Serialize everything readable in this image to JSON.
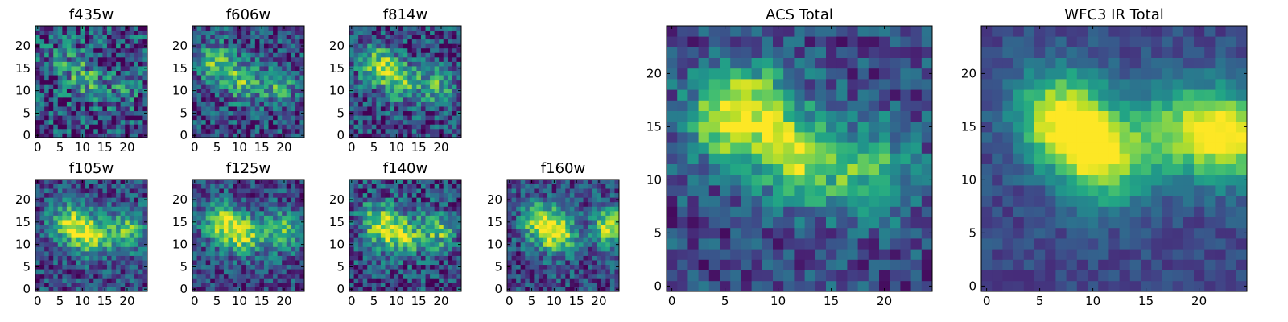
{
  "chart_data": [
    {
      "type": "heatmap",
      "title": "f435w",
      "xlim": [
        0,
        24
      ],
      "ylim": [
        0,
        24
      ],
      "xticks": [
        0,
        5,
        10,
        15,
        20
      ],
      "yticks": [
        0,
        5,
        10,
        15,
        20
      ],
      "grid": false,
      "colormap": "viridis",
      "blobs": [
        {
          "x": 7,
          "y": 16,
          "level": 0.25
        },
        {
          "x": 12,
          "y": 12,
          "level": 0.3
        },
        {
          "x": 19,
          "y": 10,
          "level": 0.15
        }
      ],
      "noise": 0.45,
      "seed": 11
    },
    {
      "type": "heatmap",
      "title": "f606w",
      "xlim": [
        0,
        24
      ],
      "ylim": [
        0,
        24
      ],
      "xticks": [
        0,
        5,
        10,
        15,
        20
      ],
      "yticks": [
        0,
        5,
        10,
        15,
        20
      ],
      "grid": false,
      "colormap": "viridis",
      "blobs": [
        {
          "x": 5,
          "y": 16,
          "level": 0.5
        },
        {
          "x": 11,
          "y": 12,
          "level": 0.45
        },
        {
          "x": 19,
          "y": 11,
          "level": 0.35
        }
      ],
      "noise": 0.35,
      "seed": 23
    },
    {
      "type": "heatmap",
      "title": "f814w",
      "xlim": [
        0,
        24
      ],
      "ylim": [
        0,
        24
      ],
      "xticks": [
        0,
        5,
        10,
        15,
        20
      ],
      "yticks": [
        0,
        5,
        10,
        15,
        20
      ],
      "grid": false,
      "colormap": "viridis",
      "blobs": [
        {
          "x": 6,
          "y": 16,
          "level": 0.55
        },
        {
          "x": 11,
          "y": 12,
          "level": 0.45
        },
        {
          "x": 19,
          "y": 11,
          "level": 0.4
        }
      ],
      "noise": 0.35,
      "seed": 37
    },
    {
      "type": "heatmap",
      "title": "f105w",
      "xlim": [
        0,
        24
      ],
      "ylim": [
        0,
        24
      ],
      "xticks": [
        0,
        5,
        10,
        15,
        20
      ],
      "yticks": [
        0,
        5,
        10,
        15,
        20
      ],
      "grid": false,
      "colormap": "viridis",
      "blobs": [
        {
          "x": 7,
          "y": 15,
          "level": 0.6
        },
        {
          "x": 12,
          "y": 12,
          "level": 0.65
        },
        {
          "x": 20,
          "y": 13,
          "level": 0.5
        }
      ],
      "noise": 0.3,
      "seed": 41
    },
    {
      "type": "heatmap",
      "title": "f125w",
      "xlim": [
        0,
        24
      ],
      "ylim": [
        0,
        24
      ],
      "xticks": [
        0,
        5,
        10,
        15,
        20
      ],
      "yticks": [
        0,
        5,
        10,
        15,
        20
      ],
      "grid": false,
      "colormap": "viridis",
      "blobs": [
        {
          "x": 6,
          "y": 15,
          "level": 0.6
        },
        {
          "x": 11,
          "y": 12,
          "level": 0.6
        },
        {
          "x": 20,
          "y": 13,
          "level": 0.55
        }
      ],
      "noise": 0.3,
      "seed": 53
    },
    {
      "type": "heatmap",
      "title": "f140w",
      "xlim": [
        0,
        24
      ],
      "ylim": [
        0,
        24
      ],
      "xticks": [
        0,
        5,
        10,
        15,
        20
      ],
      "yticks": [
        0,
        5,
        10,
        15,
        20
      ],
      "grid": false,
      "colormap": "viridis",
      "blobs": [
        {
          "x": 6,
          "y": 15,
          "level": 0.6
        },
        {
          "x": 11,
          "y": 12,
          "level": 0.6
        },
        {
          "x": 19,
          "y": 13,
          "level": 0.5
        }
      ],
      "noise": 0.35,
      "seed": 67
    },
    {
      "type": "heatmap",
      "title": "f160w",
      "xlim": [
        0,
        24
      ],
      "ylim": [
        0,
        24
      ],
      "xticks": [
        0,
        5,
        10,
        15,
        20
      ],
      "yticks": [
        0,
        5,
        10,
        15,
        20
      ],
      "grid": false,
      "colormap": "viridis",
      "blobs": [
        {
          "x": 7,
          "y": 15,
          "level": 0.65
        },
        {
          "x": 11,
          "y": 12,
          "level": 0.6
        },
        {
          "x": 23,
          "y": 14,
          "level": 0.7
        }
      ],
      "noise": 0.3,
      "seed": 79
    },
    {
      "type": "heatmap",
      "title": "ACS Total",
      "xlim": [
        0,
        24
      ],
      "ylim": [
        0,
        24
      ],
      "xticks": [
        0,
        5,
        10,
        15,
        20
      ],
      "yticks": [
        0,
        5,
        10,
        15,
        20
      ],
      "grid": false,
      "colormap": "viridis",
      "blobs": [
        {
          "x": 7,
          "y": 17,
          "level": 0.55
        },
        {
          "x": 5,
          "y": 15,
          "level": 0.35
        },
        {
          "x": 12,
          "y": 12,
          "level": 0.6
        },
        {
          "x": 19,
          "y": 11,
          "level": 0.45
        }
      ],
      "noise": 0.25,
      "seed": 89
    },
    {
      "type": "heatmap",
      "title": "WFC3 IR Total",
      "xlim": [
        0,
        24
      ],
      "ylim": [
        0,
        24
      ],
      "xticks": [
        0,
        5,
        10,
        15,
        20
      ],
      "yticks": [
        0,
        5,
        10,
        15,
        20
      ],
      "grid": false,
      "colormap": "viridis",
      "blobs": [
        {
          "x": 7,
          "y": 16,
          "level": 0.75
        },
        {
          "x": 11,
          "y": 12,
          "level": 0.7
        },
        {
          "x": 23,
          "y": 14,
          "level": 0.7
        },
        {
          "x": 18,
          "y": 15,
          "level": 0.45
        }
      ],
      "noise": 0.12,
      "seed": 97
    }
  ]
}
